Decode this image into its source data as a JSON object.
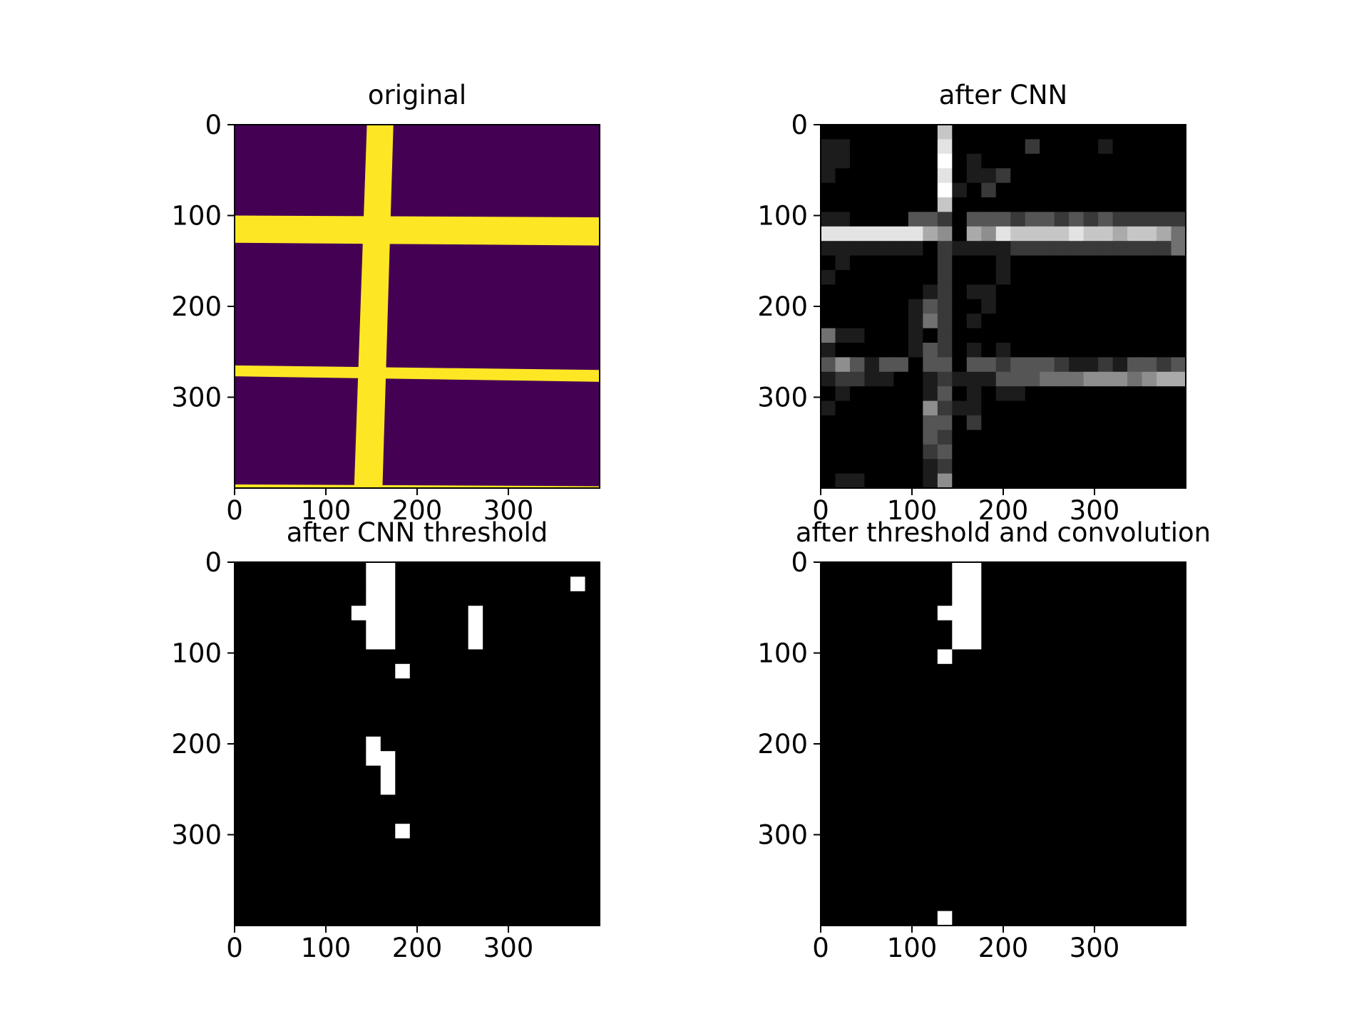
{
  "chart_data": [
    {
      "type": "heatmap",
      "panel": "top-left",
      "title": "original",
      "colormap": "viridis",
      "xlim": [
        0,
        400
      ],
      "ylim": [
        400,
        0
      ],
      "xticks": [
        0,
        100,
        200,
        300
      ],
      "yticks": [
        0,
        100,
        200,
        300
      ],
      "colors": {
        "background": "#440154",
        "foreground": "#fde725"
      },
      "shapes": [
        {
          "kind": "vertical-band",
          "x_top": [
            145,
            174
          ],
          "x_bottom": [
            131,
            162
          ]
        },
        {
          "kind": "horizontal-band",
          "y_left": [
            100,
            130
          ],
          "y_right": [
            102,
            133
          ]
        },
        {
          "kind": "horizontal-band",
          "y_left": [
            265,
            277
          ],
          "y_right": [
            270,
            283
          ]
        },
        {
          "kind": "horizontal-band",
          "y_left": [
            396,
            400
          ],
          "y_right": [
            398,
            400
          ]
        }
      ]
    },
    {
      "type": "heatmap",
      "panel": "top-right",
      "title": "after CNN",
      "colormap": "gray",
      "xlim": [
        0,
        400
      ],
      "ylim": [
        400,
        0
      ],
      "xticks": [
        0,
        100,
        200,
        300
      ],
      "yticks": [
        0,
        100,
        200,
        300
      ],
      "grid": [
        "0000000070000000000000000",
        "1100000080000020000100000",
        "1100000090100000000000000",
        "1000000080112000000000000",
        "0000000091020000000000000",
        "0000000070000000000000000",
        "1100003320333233232322222",
        "8888888650658777787767764",
        "1111111021111222222222224",
        "0100000020001000000000000",
        "1000000020001000000000000",
        "0000000120110000000000000",
        "0000001320010000000000000",
        "0000001420100000000000000",
        "4110001020000000000000000",
        "1000001320101000000000000",
        "3531330330332333211213323",
        "1221100121113334445554566",
        "0100000130101100000000000",
        "1000000521100000000000000",
        "0000000330200000000000000",
        "0000000320000000000000000",
        "0000000230000000000000000",
        "0000000120000000000000000",
        "0110000150000000000000000"
      ]
    },
    {
      "type": "heatmap",
      "panel": "bottom-left",
      "title": "after CNN threshold",
      "colormap": "gray",
      "xlim": [
        0,
        400
      ],
      "ylim": [
        400,
        0
      ],
      "xticks": [
        0,
        100,
        200,
        300
      ],
      "yticks": [
        0,
        100,
        200,
        300
      ],
      "grid": [
        "0000000001100000000000000",
        "0000000001100000000000010",
        "0000000001100000000000000",
        "0000000011100000100000000",
        "0000000001100000100000000",
        "0000000001100000100000000",
        "0000000000000000000000000",
        "0000000000010000000000000",
        "0000000000000000000000000",
        "0000000000000000000000000",
        "0000000000000000000000000",
        "0000000000000000000000000",
        "0000000001000000000000000",
        "0000000001100000000000000",
        "0000000000100000000000000",
        "0000000000100000000000000",
        "0000000000000000000000000",
        "0000000000000000000000000",
        "0000000000010000000000000",
        "0000000000000000000000000",
        "0000000000000000000000000",
        "0000000000000000000000000",
        "0000000000000000000000000",
        "0000000000000000000000000",
        "0000000000000000000000000"
      ]
    },
    {
      "type": "heatmap",
      "panel": "bottom-right",
      "title": "after threshold and convolution",
      "colormap": "gray",
      "xlim": [
        0,
        400
      ],
      "ylim": [
        400,
        0
      ],
      "xticks": [
        0,
        100,
        200,
        300
      ],
      "yticks": [
        0,
        100,
        200,
        300
      ],
      "grid": [
        "0000000001100000000000000",
        "0000000001100000000000000",
        "0000000001100000000000000",
        "0000000011100000000000000",
        "0000000001100000000000000",
        "0000000001100000000000000",
        "0000000010000000000000000",
        "0000000000000000000000000",
        "0000000000000000000000000",
        "0000000000000000000000000",
        "0000000000000000000000000",
        "0000000000000000000000000",
        "0000000000000000000000000",
        "0000000000000000000000000",
        "0000000000000000000000000",
        "0000000000000000000000000",
        "0000000000000000000000000",
        "0000000000000000000000000",
        "0000000000000000000000000",
        "0000000000000000000000000",
        "0000000000000000000000000",
        "0000000000000000000000000",
        "0000000000000000000000000",
        "0000000000000000000000000",
        "0000000010000000000000000"
      ]
    }
  ]
}
